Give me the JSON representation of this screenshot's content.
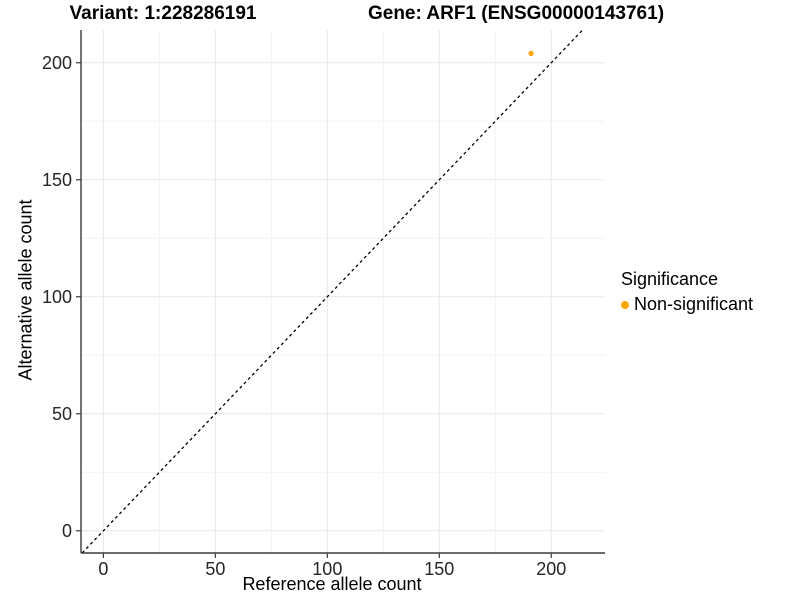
{
  "chart_data": {
    "type": "scatter",
    "titles": {
      "left": "Variant: 1:228286191",
      "right": "Gene: ARF1 (ENSG00000143761)"
    },
    "xlabel": "Reference allele count",
    "ylabel": "Alternative allele count",
    "x_ticks": [
      0,
      50,
      100,
      150,
      200
    ],
    "y_ticks": [
      0,
      50,
      100,
      150,
      200
    ],
    "xlim": [
      -10,
      224
    ],
    "ylim": [
      -9.5,
      214
    ],
    "grid": {
      "major": true,
      "minor": true,
      "legend_position": "right"
    },
    "reference_line": {
      "slope": 1,
      "intercept": 0,
      "linetype": "dashed",
      "color": "#000000"
    },
    "series": [
      {
        "name": "Non-significant",
        "color": "#FFA500",
        "points": [
          {
            "x": 191,
            "y": 204
          }
        ]
      }
    ],
    "legend": {
      "title": "Significance",
      "items": [
        {
          "label": "Non-significant",
          "color": "#FFA500",
          "marker": "circle-icon"
        }
      ]
    }
  },
  "colors": {
    "background": "#FFFFFF",
    "grid_major": "#E8E8E8",
    "grid_minor": "#F3F3F3",
    "axis_line": "#3a3a3a",
    "tick_text": "#262626",
    "title_text": "#000000"
  }
}
